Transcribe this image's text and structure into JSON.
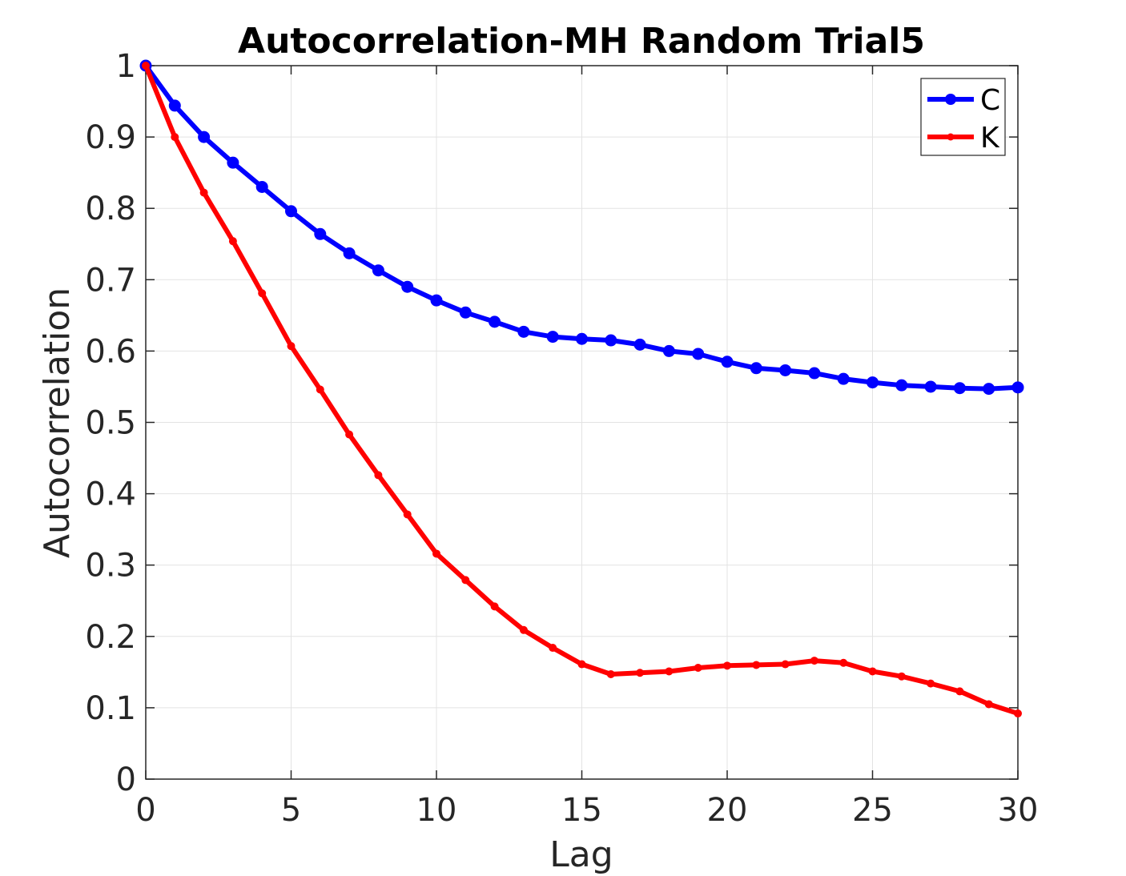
{
  "chart_data": {
    "type": "line",
    "title": "Autocorrelation-MH Random Trial5",
    "xlabel": "Lag",
    "ylabel": "Autocorrelation",
    "xlim": [
      0,
      30
    ],
    "ylim": [
      0,
      1
    ],
    "xticks": [
      0,
      5,
      10,
      15,
      20,
      25,
      30
    ],
    "yticks": [
      0,
      0.1,
      0.2,
      0.3,
      0.4,
      0.5,
      0.6,
      0.7,
      0.8,
      0.9,
      1
    ],
    "ytick_labels": [
      "0",
      "0.1",
      "0.2",
      "0.3",
      "0.4",
      "0.5",
      "0.6",
      "0.7",
      "0.8",
      "0.9",
      "1"
    ],
    "grid": true,
    "legend_position": "top-right",
    "x": [
      0,
      1,
      2,
      3,
      4,
      5,
      6,
      7,
      8,
      9,
      10,
      11,
      12,
      13,
      14,
      15,
      16,
      17,
      18,
      19,
      20,
      21,
      22,
      23,
      24,
      25,
      26,
      27,
      28,
      29,
      30
    ],
    "series": [
      {
        "name": "C",
        "color": "#0000ff",
        "marker": "circle-large",
        "values": [
          1.0,
          0.944,
          0.9,
          0.864,
          0.83,
          0.796,
          0.764,
          0.737,
          0.713,
          0.69,
          0.671,
          0.654,
          0.641,
          0.627,
          0.62,
          0.617,
          0.615,
          0.609,
          0.6,
          0.596,
          0.585,
          0.576,
          0.573,
          0.569,
          0.561,
          0.556,
          0.552,
          0.55,
          0.548,
          0.547,
          0.549
        ]
      },
      {
        "name": "K",
        "color": "#ff0000",
        "marker": "dot-small",
        "values": [
          1.0,
          0.9,
          0.822,
          0.754,
          0.681,
          0.607,
          0.546,
          0.483,
          0.426,
          0.371,
          0.316,
          0.279,
          0.242,
          0.209,
          0.184,
          0.161,
          0.147,
          0.149,
          0.151,
          0.156,
          0.159,
          0.16,
          0.161,
          0.166,
          0.163,
          0.151,
          0.144,
          0.134,
          0.123,
          0.105,
          0.092
        ]
      }
    ]
  }
}
